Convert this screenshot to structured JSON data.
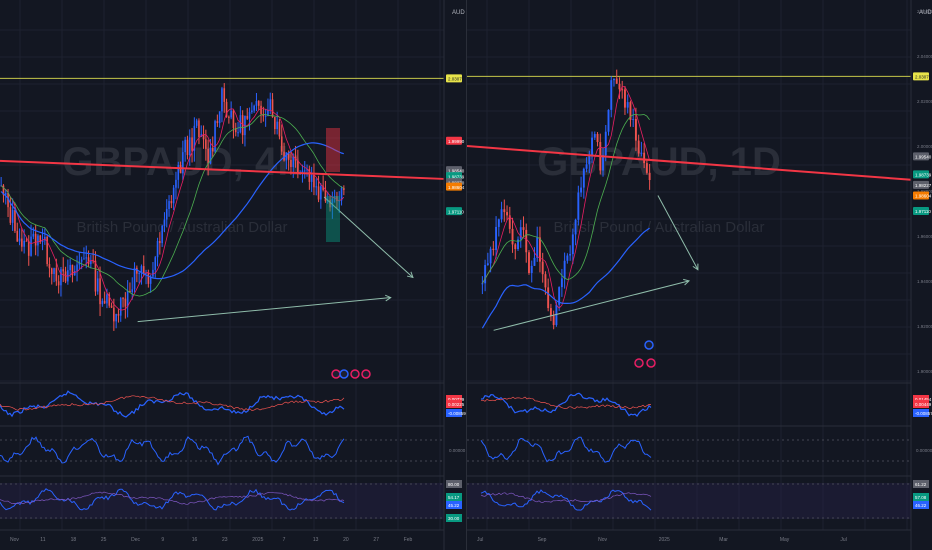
{
  "colors": {
    "background": "#131722",
    "up": "#2962ff",
    "down": "#ef5350",
    "resistance": "#c5c74a",
    "trendline_red": "#f23645",
    "ma_blue": "#2962ff",
    "ma_green": "#4caf50",
    "ma_pink": "#e91e63",
    "grid": "#1e2230",
    "text": "#b2b5be",
    "arrow": "#8fbcaa"
  },
  "chart_data": [
    {
      "panel": "left",
      "type": "candlestick",
      "title": "GBPAUD, 4h",
      "subtitle": "British Pound / Australian Dollar",
      "currency_label": "AUD",
      "y_ticks": [],
      "x_ticks": [
        "Nov",
        "11",
        "18",
        "25",
        "Dec",
        "9",
        "16",
        "23",
        "2025",
        "7",
        "13",
        "20",
        "27",
        "Feb"
      ],
      "price_badges": [
        {
          "label": "2.03071",
          "value": 2.031,
          "kind": "resistance"
        },
        {
          "label": "1.99990",
          "value": 2.0,
          "kind": "red"
        },
        {
          "label": "1.98540",
          "value": 1.9854,
          "kind": "gray"
        },
        {
          "label": "1.98739",
          "value": 1.9824,
          "kind": "green"
        },
        {
          "label": "1.98270",
          "value": 1.9794,
          "kind": "gray"
        },
        {
          "label": "1.98604",
          "value": 1.9772,
          "kind": "orange"
        },
        {
          "label": "1.97110",
          "value": 1.965,
          "kind": "teal"
        }
      ],
      "resistance": 2.031,
      "trendline": [
        {
          "x": 0,
          "y": 1.99
        },
        {
          "x": 1,
          "y": 1.981
        }
      ],
      "arrow_up": [
        {
          "x": 0.31,
          "y": 1.91
        },
        {
          "x": 0.88,
          "y": 1.922
        }
      ],
      "arrow_down": [
        {
          "x": 0.73,
          "y": 1.972
        },
        {
          "x": 0.93,
          "y": 1.932
        }
      ],
      "close_path": [
        1.975,
        1.96,
        1.945,
        1.955,
        1.94,
        1.93,
        1.935,
        1.945,
        1.925,
        1.915,
        1.92,
        1.935,
        1.93,
        1.95,
        1.975,
        1.995,
        2.005,
        1.99,
        2.025,
        2.005,
        2.01,
        2.015,
        2.02,
        1.995,
        1.99,
        1.985,
        1.975,
        1.972,
        1.977
      ],
      "indicators": {
        "osc1": {
          "labels": [
            "0.00739",
            "0.00225",
            "-0.00859"
          ]
        },
        "osc2": {
          "labels": [
            "0.00000"
          ]
        },
        "rsi": {
          "labels": [
            "80.00",
            "54.17",
            "45.22",
            "30.00"
          ]
        }
      }
    },
    {
      "panel": "right",
      "type": "candlestick",
      "title": "GBPAUD, 1D",
      "subtitle": "British Pound / Australian Dollar",
      "currency_label": "AUD",
      "y_ticks": [
        "2.06000",
        "2.04000",
        "2.02000",
        "2.00000",
        "1.98000",
        "1.96000",
        "1.94000",
        "1.92000",
        "1.90000"
      ],
      "x_ticks": [
        "Jul",
        "Sep",
        "Nov",
        "2025",
        "Mar",
        "May",
        "Jul"
      ],
      "price_badges": [
        {
          "label": "2.03071",
          "value": 2.031,
          "kind": "resistance"
        },
        {
          "label": "1.99540",
          "value": 1.9954,
          "kind": "gray"
        },
        {
          "label": "1.98739",
          "value": 1.9874,
          "kind": "green"
        },
        {
          "label": "1.98227",
          "value": 1.9827,
          "kind": "gray"
        },
        {
          "label": "1.98604",
          "value": 1.978,
          "kind": "orange"
        },
        {
          "label": "1.97110",
          "value": 1.9711,
          "kind": "teal"
        }
      ],
      "resistance": 2.031,
      "trendline": [
        {
          "x": 0,
          "y": 2.0
        },
        {
          "x": 1,
          "y": 1.985
        }
      ],
      "arrow_up": [
        {
          "x": 0.06,
          "y": 1.918
        },
        {
          "x": 0.5,
          "y": 1.94
        }
      ],
      "arrow_down": [
        {
          "x": 0.43,
          "y": 1.978
        },
        {
          "x": 0.52,
          "y": 1.945
        }
      ],
      "close_path": [
        1.94,
        1.95,
        1.965,
        1.975,
        1.955,
        1.962,
        1.945,
        1.958,
        1.932,
        1.92,
        1.945,
        1.955,
        1.975,
        1.995,
        2.005,
        1.99,
        2.025,
        2.03,
        2.02,
        2.01,
        1.995,
        1.985
      ],
      "indicators": {
        "osc1": {
          "labels": [
            "0.01454",
            "0.00449",
            "-0.00857"
          ]
        },
        "osc2": {
          "labels": [
            "0.00000"
          ]
        },
        "rsi": {
          "labels": [
            "61.22",
            "57.08",
            "46.22"
          ]
        }
      }
    }
  ]
}
